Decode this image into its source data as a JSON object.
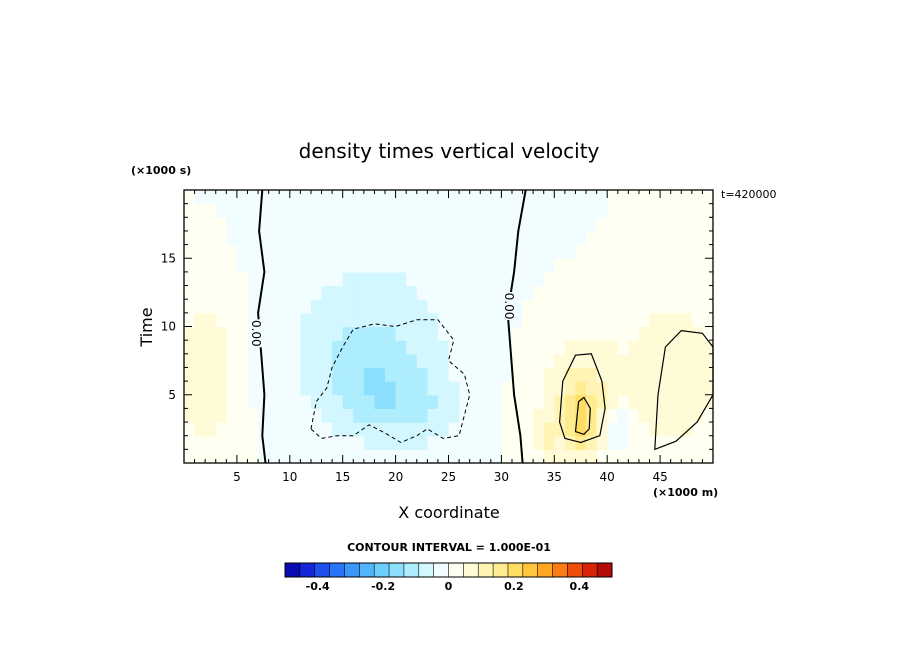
{
  "chart_data": {
    "type": "heatmap",
    "title": "density times vertical velocity",
    "xlabel": "X coordinate",
    "ylabel": "Time",
    "x_unit": "(×1000 m)",
    "y_unit": "(×1000 s)",
    "time_stamp": "t=420000",
    "xlim": [
      0,
      50
    ],
    "ylim": [
      0,
      20
    ],
    "x_ticks": [
      5,
      10,
      15,
      20,
      25,
      30,
      35,
      40,
      45
    ],
    "y_ticks": [
      5,
      10,
      15
    ],
    "contour_interval_text": "CONTOUR INTERVAL = 1.000E-01",
    "contour_label": "0.00",
    "colorbar": {
      "range": [
        -0.5,
        0.5
      ],
      "ticks": [
        -0.4,
        -0.2,
        0,
        0.2,
        0.4
      ],
      "tick_labels": [
        "-0.4",
        "-0.2",
        "0",
        "0.2",
        "0.4"
      ],
      "colors": [
        "#0b0bb4",
        "#1228d8",
        "#1e4ef0",
        "#2a74f8",
        "#3a98fb",
        "#4fb6fd",
        "#6ccefd",
        "#8de0fd",
        "#aeedfe",
        "#d2f7ff",
        "#f1fdff",
        "#fffff2",
        "#fffbd6",
        "#fff4b4",
        "#ffec90",
        "#ffdd64",
        "#ffc63c",
        "#ffa622",
        "#fb7d14",
        "#ef4f0c",
        "#da2408",
        "#b40c06"
      ]
    },
    "regions": [
      {
        "x": 2.0,
        "y": 6.5,
        "sx": 3.0,
        "sy": 5.5,
        "v": 0.085
      },
      {
        "x": 17.5,
        "y": 8.0,
        "sx": 7.5,
        "sy": 5.5,
        "v": -0.105
      },
      {
        "x": 19.0,
        "y": 4.5,
        "sx": 4.5,
        "sy": 3.0,
        "v": -0.07
      },
      {
        "x": 24.0,
        "y": 3.5,
        "sx": 3.0,
        "sy": 2.5,
        "v": -0.04
      },
      {
        "x": 37.5,
        "y": 4.5,
        "sx": 4.0,
        "sy": 5.0,
        "v": 0.11
      },
      {
        "x": 37.5,
        "y": 3.2,
        "sx": 1.6,
        "sy": 2.2,
        "v": 0.12
      },
      {
        "x": 34.0,
        "y": 2.0,
        "sx": 1.2,
        "sy": 1.5,
        "v": 0.07
      },
      {
        "x": 46.5,
        "y": 6.5,
        "sx": 4.5,
        "sy": 6.0,
        "v": 0.085
      },
      {
        "x": 41.0,
        "y": 2.5,
        "sx": 1.5,
        "sy": 1.8,
        "v": -0.09
      },
      {
        "x": 20.0,
        "y": 17.0,
        "sx": 9.0,
        "sy": 4.0,
        "v": -0.03
      }
    ]
  }
}
